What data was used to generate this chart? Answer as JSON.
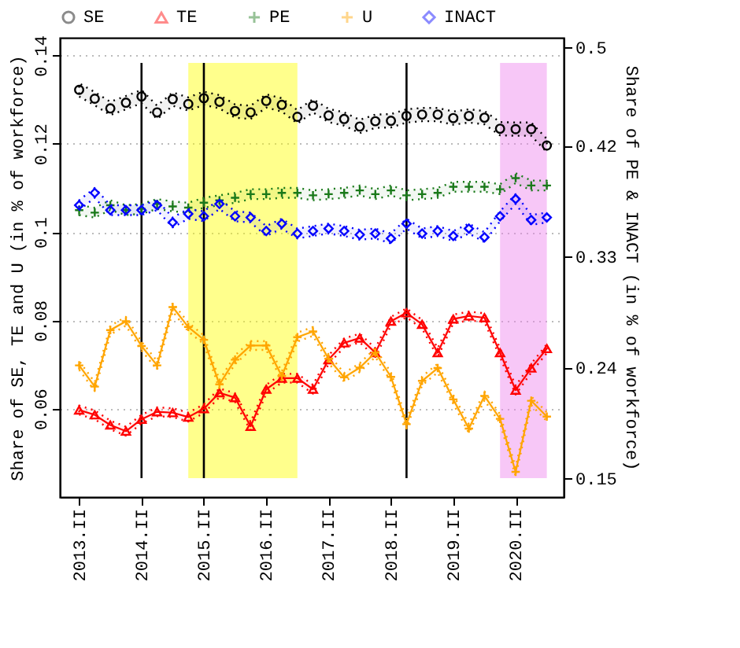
{
  "chart_data": {
    "type": "line",
    "ylabel": "Share of SE, TE and U (in % of workforce)",
    "y2label": "Share of PE & INACT (in % of workforce)",
    "x": [
      2013.25,
      2013.5,
      2013.75,
      2014,
      2014.25,
      2014.5,
      2014.75,
      2015,
      2015.25,
      2015.5,
      2015.75,
      2016,
      2016.25,
      2016.5,
      2016.75,
      2017,
      2017.25,
      2017.5,
      2017.75,
      2018,
      2018.25,
      2018.5,
      2018.75,
      2019,
      2019.25,
      2019.5,
      2019.75,
      2020,
      2020.25,
      2020.5,
      2020.75
    ],
    "xlim": [
      2012.94,
      2021.02
    ],
    "xticks": [
      {
        "value": 2013.25,
        "label": "2013.II"
      },
      {
        "value": 2014.25,
        "label": "2014.II"
      },
      {
        "value": 2015.25,
        "label": "2015.II"
      },
      {
        "value": 2016.25,
        "label": "2016.II"
      },
      {
        "value": 2017.25,
        "label": "2017.II"
      },
      {
        "value": 2018.25,
        "label": "2018.II"
      },
      {
        "value": 2019.25,
        "label": "2019.II"
      },
      {
        "value": 2020.25,
        "label": "2020.II"
      }
    ],
    "ylim": [
      0.04,
      0.144
    ],
    "yticks": [
      0.06,
      0.08,
      0.1,
      0.12,
      0.14
    ],
    "y2lim": [
      0.135,
      0.508
    ],
    "y2ticks": [
      0.15,
      0.24,
      0.33,
      0.42,
      0.5
    ],
    "grid": "y",
    "legend": "top",
    "ref_lines": [
      {
        "axis": "x",
        "value": 2014.25,
        "color": "#000000"
      },
      {
        "axis": "x",
        "value": 2015.25,
        "color": "#000000"
      },
      {
        "axis": "x",
        "value": 2018.5,
        "color": "#000000"
      }
    ],
    "bands": [
      {
        "axis": "x",
        "from": 2015.0,
        "to": 2016.75,
        "color": "#ffff00"
      },
      {
        "axis": "x",
        "from": 2020.0,
        "to": 2020.75,
        "color": "#ee82ee"
      }
    ],
    "series": [
      {
        "name": "SE",
        "type": "scatter",
        "marker": "circle",
        "color": "#000000",
        "values": [
          0.1322,
          0.1302,
          0.128,
          0.1293,
          0.1307,
          0.1271,
          0.1301,
          0.129,
          0.1303,
          0.1295,
          0.1274,
          0.1271,
          0.1297,
          0.1288,
          0.1261,
          0.1286,
          0.1264,
          0.1256,
          0.1239,
          0.1251,
          0.1252,
          0.1263,
          0.1266,
          0.1266,
          0.1258,
          0.1263,
          0.1259,
          0.1234,
          0.1233,
          0.1233,
          0.1196
        ],
        "lower": [
          0.1307,
          0.1287,
          0.1265,
          0.1278,
          0.1292,
          0.1256,
          0.1286,
          0.1275,
          0.1288,
          0.128,
          0.1259,
          0.1256,
          0.1282,
          0.1273,
          0.1246,
          0.1271,
          0.1249,
          0.1241,
          0.1224,
          0.1236,
          0.1237,
          0.1248,
          0.1251,
          0.1251,
          0.1243,
          0.1248,
          0.1244,
          0.1219,
          0.1218,
          0.1218,
          0.1181
        ],
        "upper": [
          0.1337,
          0.1317,
          0.1295,
          0.1308,
          0.1322,
          0.1286,
          0.1316,
          0.1305,
          0.1318,
          0.131,
          0.1289,
          0.1286,
          0.1312,
          0.1303,
          0.1276,
          0.1301,
          0.1279,
          0.1271,
          0.1254,
          0.1266,
          0.1267,
          0.1278,
          0.1281,
          0.1281,
          0.1273,
          0.1278,
          0.1274,
          0.1249,
          0.1248,
          0.1248,
          0.1211
        ]
      },
      {
        "name": "TE",
        "marker": "triangle",
        "color": "#ff0000",
        "values": [
          0.0597,
          0.0586,
          0.0563,
          0.0549,
          0.0576,
          0.0593,
          0.0591,
          0.0581,
          0.06,
          0.0636,
          0.0625,
          0.056,
          0.0644,
          0.0669,
          0.0669,
          0.0644,
          0.0711,
          0.0749,
          0.076,
          0.0727,
          0.0798,
          0.0817,
          0.0791,
          0.0727,
          0.0803,
          0.081,
          0.0806,
          0.0727,
          0.0642,
          0.0692,
          0.0736
        ],
        "lower": [
          0.0587,
          0.0576,
          0.0553,
          0.0539,
          0.0566,
          0.0583,
          0.0581,
          0.0571,
          0.059,
          0.0626,
          0.0615,
          0.055,
          0.0634,
          0.0659,
          0.0659,
          0.0634,
          0.0701,
          0.0739,
          0.075,
          0.0717,
          0.0788,
          0.0807,
          0.0781,
          0.0717,
          0.0793,
          0.08,
          0.0796,
          0.0717,
          0.0632,
          0.0682,
          0.0726
        ],
        "upper": [
          0.0607,
          0.0596,
          0.0573,
          0.0559,
          0.0586,
          0.0603,
          0.0601,
          0.0591,
          0.061,
          0.0646,
          0.0635,
          0.057,
          0.0654,
          0.0679,
          0.0679,
          0.0654,
          0.0721,
          0.0759,
          0.077,
          0.0737,
          0.0808,
          0.0827,
          0.0801,
          0.0737,
          0.0813,
          0.082,
          0.0816,
          0.0737,
          0.0652,
          0.0702,
          0.0746
        ]
      },
      {
        "name": "PE",
        "type": "scatter",
        "marker": "cross",
        "axis": "y2",
        "color": "#1a7a1a",
        "values": [
          0.368,
          0.366,
          0.372,
          0.368,
          0.369,
          0.373,
          0.371,
          0.37,
          0.374,
          0.376,
          0.378,
          0.381,
          0.381,
          0.382,
          0.382,
          0.38,
          0.381,
          0.382,
          0.384,
          0.381,
          0.384,
          0.38,
          0.381,
          0.382,
          0.387,
          0.387,
          0.387,
          0.385,
          0.394,
          0.388,
          0.388
        ],
        "lower": [
          0.364,
          0.362,
          0.368,
          0.364,
          0.365,
          0.369,
          0.367,
          0.366,
          0.37,
          0.372,
          0.374,
          0.377,
          0.377,
          0.378,
          0.378,
          0.376,
          0.377,
          0.378,
          0.38,
          0.377,
          0.38,
          0.376,
          0.377,
          0.378,
          0.383,
          0.383,
          0.383,
          0.381,
          0.39,
          0.384,
          0.384
        ],
        "upper": [
          0.372,
          0.37,
          0.376,
          0.372,
          0.373,
          0.377,
          0.375,
          0.374,
          0.378,
          0.38,
          0.382,
          0.385,
          0.385,
          0.386,
          0.386,
          0.384,
          0.385,
          0.386,
          0.388,
          0.385,
          0.388,
          0.384,
          0.385,
          0.386,
          0.391,
          0.391,
          0.391,
          0.389,
          0.398,
          0.392,
          0.392
        ]
      },
      {
        "name": "U",
        "marker": "cross",
        "color": "#ffa500",
        "values": [
          0.0698,
          0.065,
          0.0778,
          0.0798,
          0.0742,
          0.0698,
          0.083,
          0.0785,
          0.0756,
          0.0655,
          0.0711,
          0.0743,
          0.0743,
          0.0674,
          0.0762,
          0.0775,
          0.0713,
          0.0671,
          0.0693,
          0.0727,
          0.0672,
          0.0565,
          0.0663,
          0.0692,
          0.0621,
          0.0555,
          0.0629,
          0.0577,
          0.0457,
          0.0618,
          0.0582
        ],
        "lower": [
          0.0688,
          0.064,
          0.0768,
          0.0788,
          0.0732,
          0.0688,
          0.082,
          0.0775,
          0.0746,
          0.0645,
          0.0701,
          0.0733,
          0.0733,
          0.0664,
          0.0752,
          0.0765,
          0.0703,
          0.0661,
          0.0683,
          0.0717,
          0.0662,
          0.0555,
          0.0653,
          0.0682,
          0.0611,
          0.0545,
          0.0619,
          0.0567,
          0.0447,
          0.0608,
          0.0572
        ],
        "upper": [
          0.0708,
          0.066,
          0.0788,
          0.0808,
          0.0752,
          0.0708,
          0.084,
          0.0795,
          0.0766,
          0.0665,
          0.0721,
          0.0753,
          0.0753,
          0.0684,
          0.0772,
          0.0785,
          0.0723,
          0.0681,
          0.0703,
          0.0737,
          0.0682,
          0.0575,
          0.0673,
          0.0702,
          0.0631,
          0.0565,
          0.0639,
          0.0587,
          0.0467,
          0.0628,
          0.0592
        ]
      },
      {
        "name": "INACT",
        "type": "scatter",
        "marker": "diamond",
        "axis": "y2",
        "color": "#0000ff",
        "values": [
          0.372,
          0.382,
          0.368,
          0.368,
          0.368,
          0.372,
          0.358,
          0.365,
          0.363,
          0.373,
          0.363,
          0.362,
          0.351,
          0.357,
          0.349,
          0.351,
          0.353,
          0.351,
          0.348,
          0.349,
          0.345,
          0.357,
          0.349,
          0.351,
          0.347,
          0.353,
          0.346,
          0.363,
          0.377,
          0.36,
          0.362
        ],
        "lower": [
          0.368,
          0.378,
          0.364,
          0.364,
          0.364,
          0.368,
          0.354,
          0.361,
          0.359,
          0.369,
          0.359,
          0.358,
          0.347,
          0.353,
          0.345,
          0.347,
          0.349,
          0.347,
          0.344,
          0.345,
          0.341,
          0.353,
          0.345,
          0.347,
          0.343,
          0.349,
          0.342,
          0.359,
          0.373,
          0.356,
          0.358
        ],
        "upper": [
          0.376,
          0.386,
          0.372,
          0.372,
          0.372,
          0.376,
          0.362,
          0.369,
          0.367,
          0.377,
          0.367,
          0.366,
          0.355,
          0.361,
          0.353,
          0.355,
          0.357,
          0.355,
          0.352,
          0.353,
          0.349,
          0.361,
          0.353,
          0.355,
          0.351,
          0.357,
          0.35,
          0.367,
          0.381,
          0.364,
          0.366
        ]
      }
    ]
  }
}
